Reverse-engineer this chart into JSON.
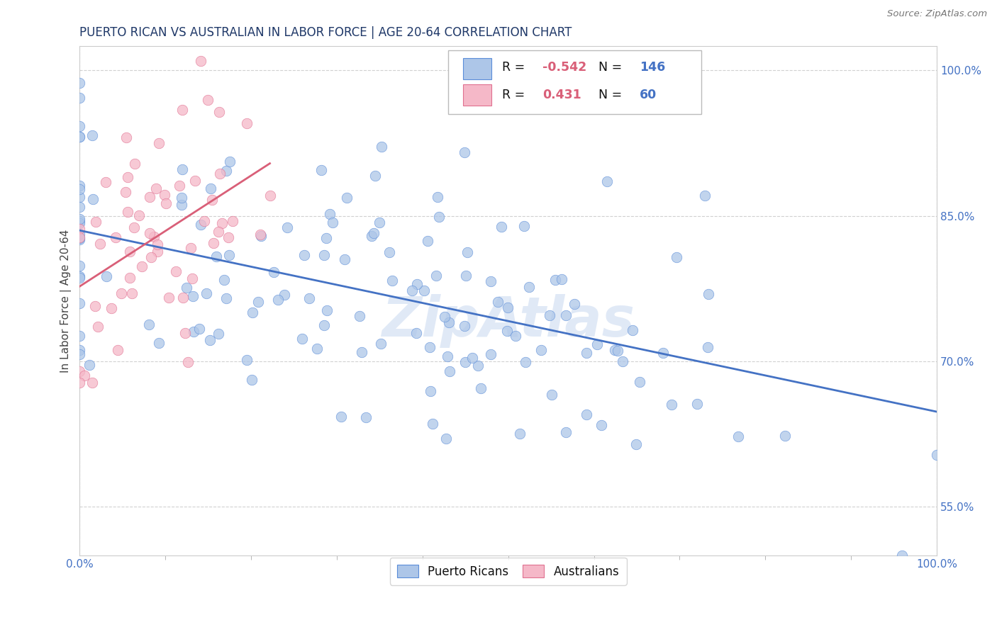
{
  "title": "PUERTO RICAN VS AUSTRALIAN IN LABOR FORCE | AGE 20-64 CORRELATION CHART",
  "source_text": "Source: ZipAtlas.com",
  "ylabel": "In Labor Force | Age 20-64",
  "watermark": "ZipAtlas",
  "blue_R": -0.542,
  "blue_N": 146,
  "pink_R": 0.431,
  "pink_N": 60,
  "blue_color": "#adc6e8",
  "pink_color": "#f5b8c8",
  "blue_edge_color": "#5b8dd9",
  "pink_edge_color": "#e07090",
  "blue_line_color": "#4472c4",
  "pink_line_color": "#d95f78",
  "title_color": "#1f3868",
  "legend_R_color": "#d95f78",
  "legend_N_color": "#4472c4",
  "tick_color": "#4472c4",
  "ylabel_color": "#444444",
  "xlim": [
    0.0,
    1.0
  ],
  "ylim": [
    0.5,
    1.025
  ],
  "x_ticks": [
    0.0,
    1.0
  ],
  "x_tick_labels": [
    "0.0%",
    "100.0%"
  ],
  "y_ticks": [
    0.55,
    0.7,
    0.85,
    1.0
  ],
  "y_tick_labels": [
    "55.0%",
    "70.0%",
    "85.0%",
    "100.0%"
  ],
  "background_color": "#ffffff",
  "grid_color": "#cccccc",
  "watermark_color": "#c8d8f0"
}
